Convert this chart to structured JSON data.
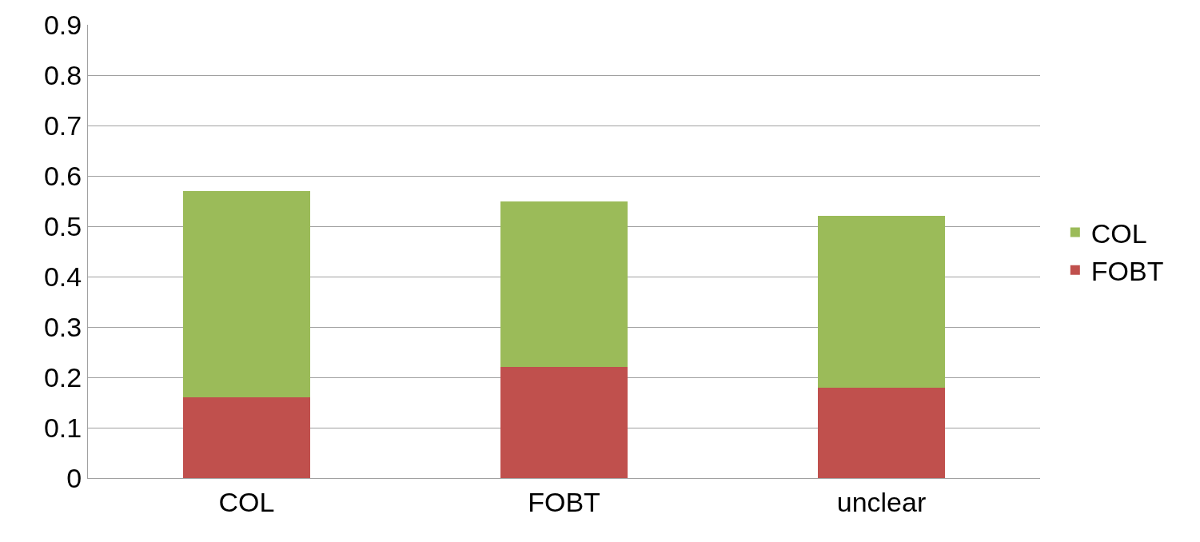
{
  "chart_data": {
    "type": "bar",
    "stacked": true,
    "categories": [
      "COL",
      "FOBT",
      "unclear"
    ],
    "series": [
      {
        "name": "FOBT",
        "color": "#c0504d",
        "values": [
          0.16,
          0.22,
          0.18
        ]
      },
      {
        "name": "COL",
        "color": "#9bbb59",
        "values": [
          0.41,
          0.33,
          0.34
        ]
      }
    ],
    "ylim": [
      0,
      0.9
    ],
    "yticks": [
      0,
      0.1,
      0.2,
      0.3,
      0.4,
      0.5,
      0.6,
      0.7,
      0.8,
      0.9
    ],
    "grid": "y",
    "legend": "right"
  }
}
